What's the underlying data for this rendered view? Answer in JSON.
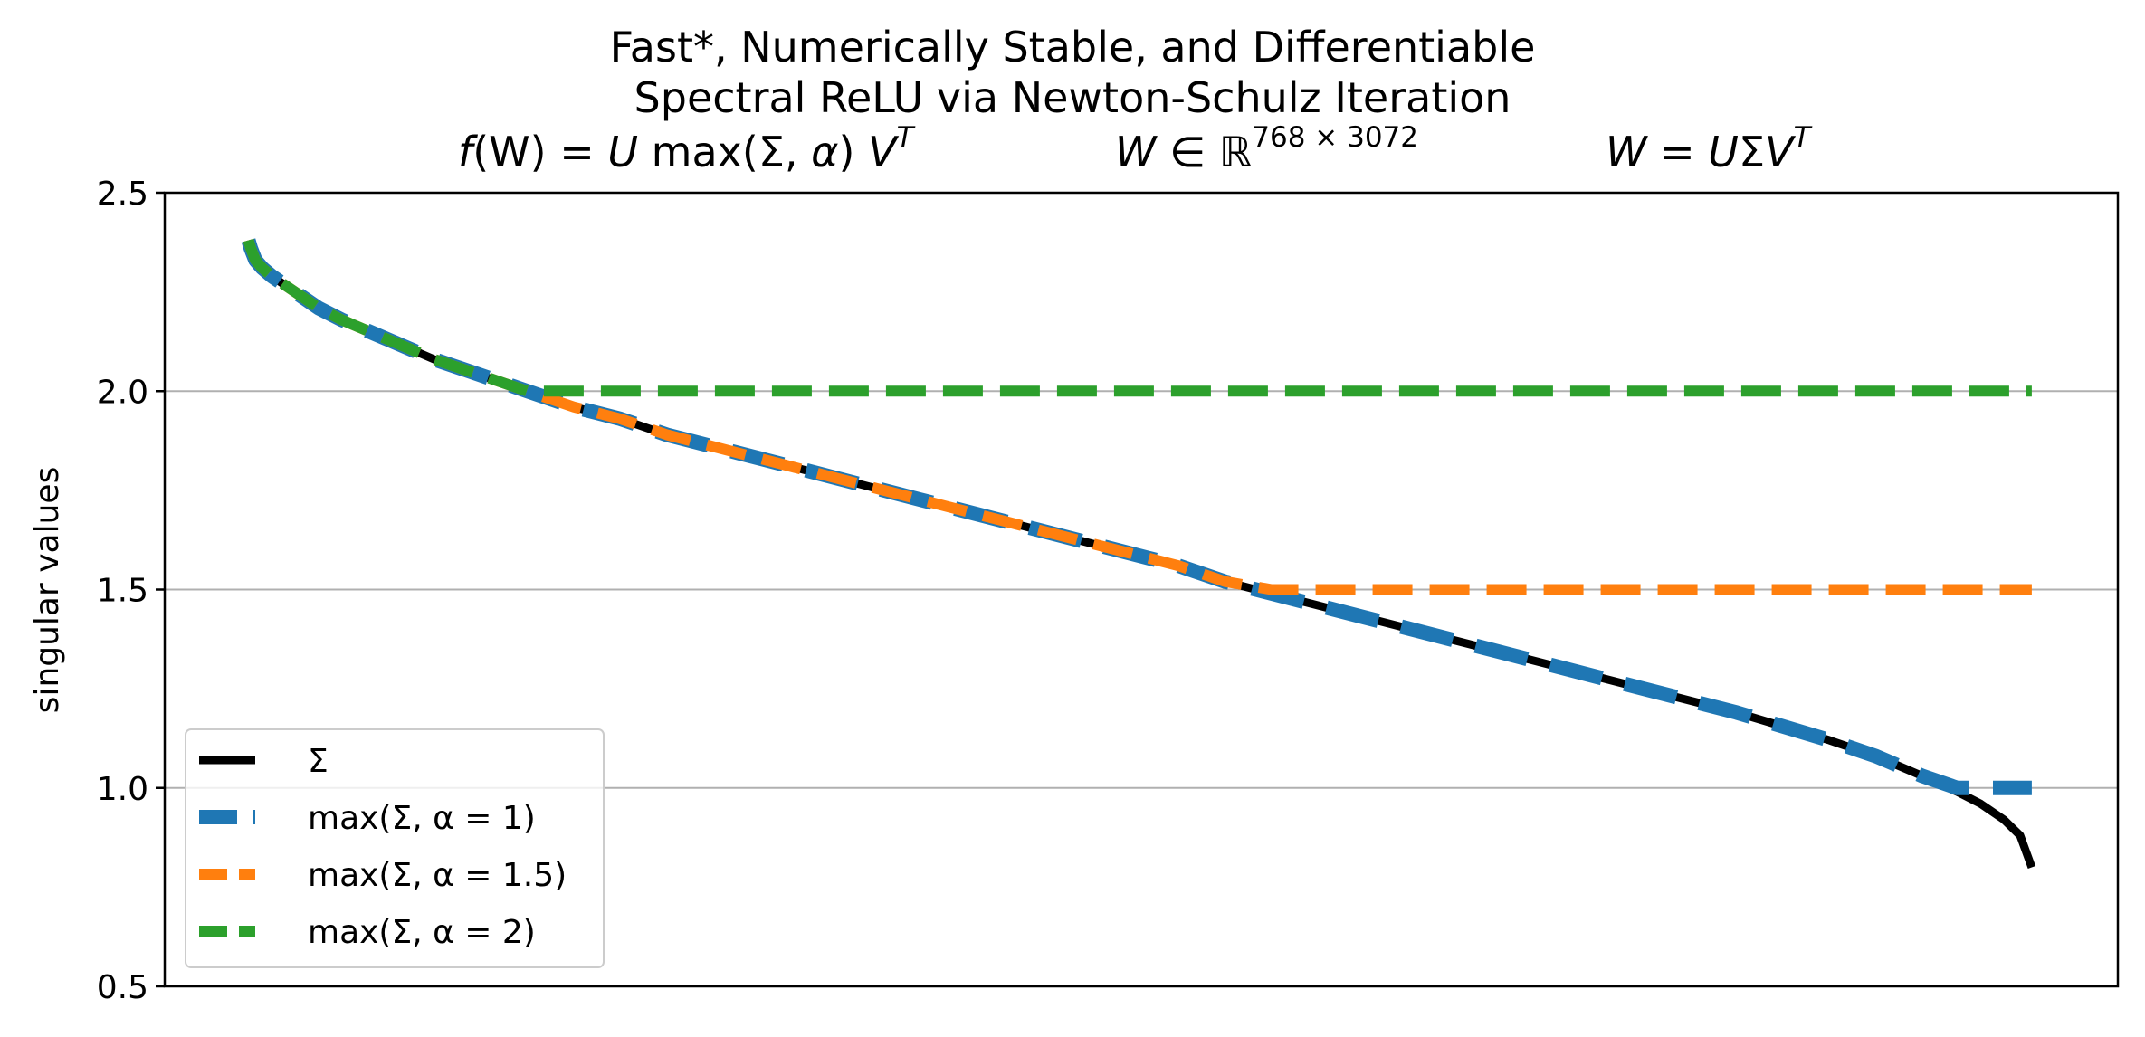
{
  "title": {
    "line1": "Fast*, Numerically Stable, and Differentiable",
    "line2": "Spectral ReLU via Newton-Schulz Iteration"
  },
  "formulas": {
    "f_lhs": "f",
    "f_mid": "(W) = ",
    "f_U": "U",
    "f_max": " max(Σ, ",
    "f_alpha": "α",
    "f_close": ") ",
    "f_V": "V",
    "f_T": "T",
    "dim_W": "W",
    "dim_in": " ∈ ",
    "dim_R": "ℝ",
    "dim_sup": "768 × 3072",
    "svd_W": "W",
    "svd_eq": " = ",
    "svd_U": "U",
    "svd_S": "Σ",
    "svd_V": "V",
    "svd_T": "T"
  },
  "colors": {
    "sigma": "#000000",
    "alpha1": "#1f77b4",
    "alpha15": "#ff7f0e",
    "alpha2": "#2ca02c",
    "grid": "#b0b0b0"
  },
  "chart_data": {
    "type": "line",
    "title": "Fast*, Numerically Stable, and Differentiable Spectral ReLU via Newton-Schulz Iteration",
    "xlabel": "",
    "ylabel": "singular values",
    "xlim": [
      -36,
      804
    ],
    "ylim": [
      0.5,
      2.5
    ],
    "yticks": [
      "0.5",
      "1.0",
      "1.5",
      "2.0",
      "2.5"
    ],
    "grid": "horizontal",
    "legend_position": "lower-left",
    "sigma_x": [
      0,
      1,
      3,
      6,
      10,
      20,
      30,
      40,
      60,
      80,
      100,
      120,
      140,
      160,
      180,
      200,
      240,
      280,
      320,
      360,
      400,
      420,
      440,
      480,
      520,
      560,
      600,
      640,
      680,
      700,
      720,
      735,
      745,
      755,
      762,
      767
    ],
    "sigma_y": [
      2.38,
      2.36,
      2.33,
      2.31,
      2.29,
      2.25,
      2.21,
      2.18,
      2.13,
      2.08,
      2.04,
      2.0,
      1.96,
      1.93,
      1.89,
      1.86,
      1.8,
      1.74,
      1.68,
      1.62,
      1.56,
      1.52,
      1.49,
      1.43,
      1.37,
      1.31,
      1.25,
      1.19,
      1.12,
      1.08,
      1.03,
      0.99,
      0.96,
      0.92,
      0.88,
      0.8
    ],
    "series": [
      {
        "name": "Σ",
        "key": "sigma",
        "alpha": null,
        "style": "solid",
        "width": 9
      },
      {
        "name": "max(Σ, α = 1)",
        "key": "alpha1",
        "alpha": 1.0,
        "style": "dashed",
        "width": 16
      },
      {
        "name": "max(Σ, α = 1.5)",
        "key": "alpha15",
        "alpha": 1.5,
        "style": "dashed",
        "width": 12
      },
      {
        "name": "max(Σ, α = 2)",
        "key": "alpha2",
        "alpha": 2.0,
        "style": "dashed",
        "width": 12
      }
    ]
  }
}
